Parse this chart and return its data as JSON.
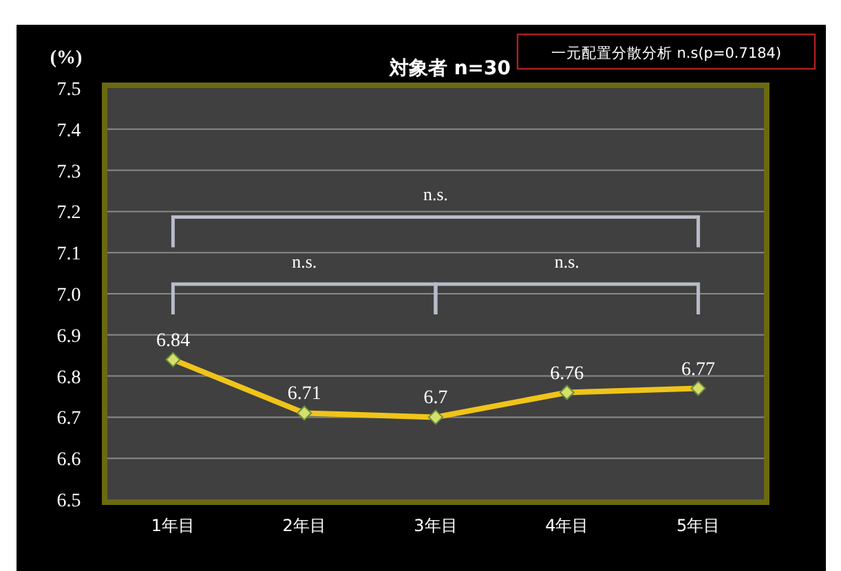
{
  "chart_data": {
    "type": "line",
    "title": "対象者 n=30",
    "ylabel": "(%)",
    "categories": [
      "1年目",
      "2年目",
      "3年目",
      "4年目",
      "5年目"
    ],
    "series": [
      {
        "color": "#f0c419",
        "values": [
          6.84,
          6.71,
          6.7,
          6.76,
          6.77
        ]
      }
    ],
    "ylim": [
      6.5,
      7.5
    ],
    "yticks": [
      "6.5",
      "6.6",
      "6.7",
      "6.8",
      "6.9",
      "7.0",
      "7.1",
      "7.2",
      "7.3",
      "7.4",
      "7.5"
    ],
    "grid": "y",
    "marker": "diamond",
    "line_style": "solid",
    "data_labels": true,
    "annotations": [
      "一元配置分散分析 n.s(p=0.7184)",
      "n.s.",
      "n.s.",
      "n.s."
    ]
  }
}
